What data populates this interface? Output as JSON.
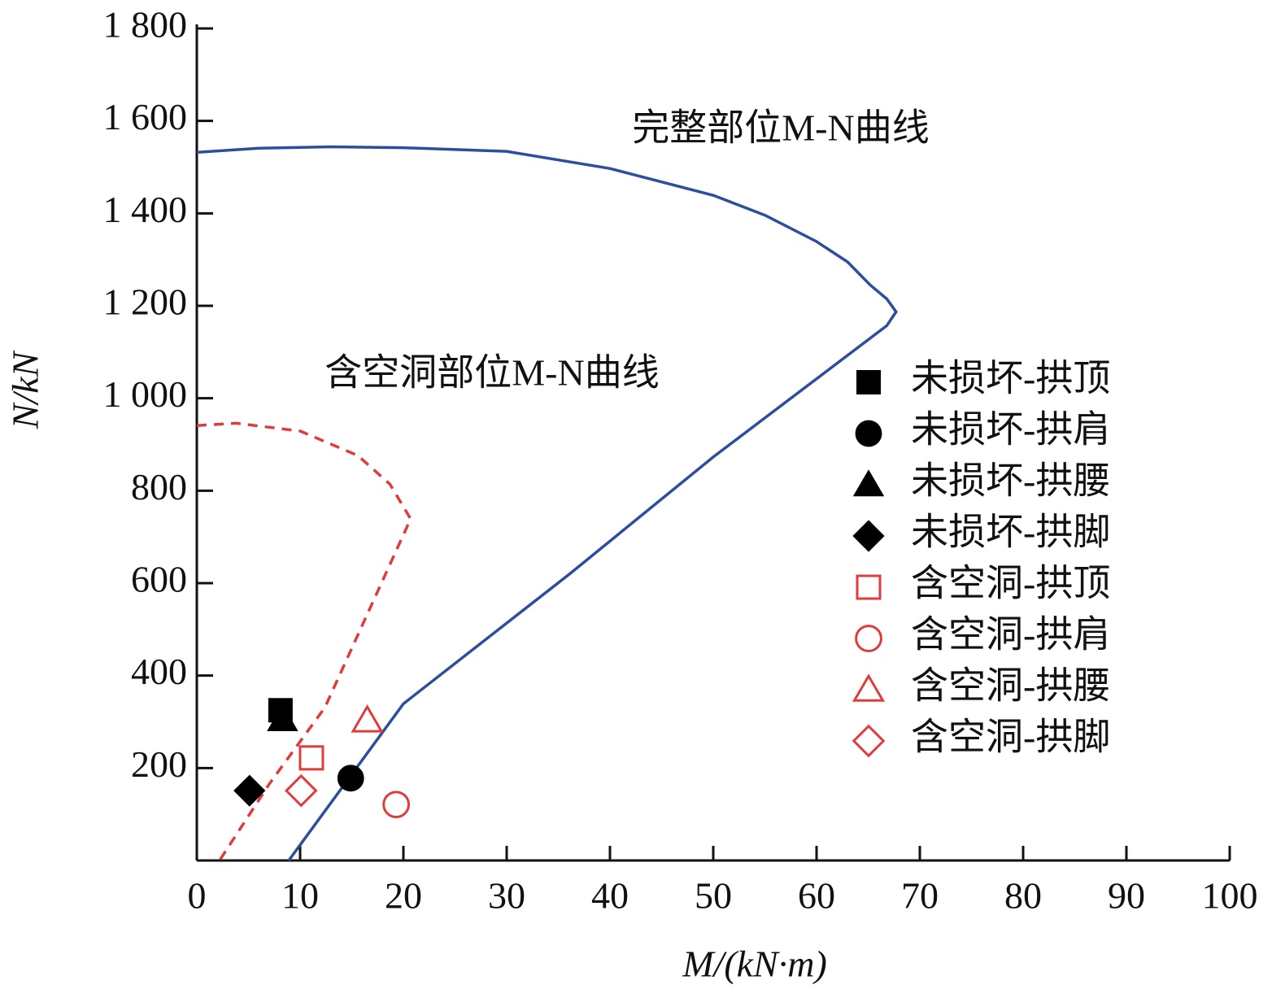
{
  "chart_data": {
    "type": "scatter",
    "xlabel": "M/(kN·m)",
    "ylabel": "N/kN",
    "xlim": [
      0,
      100
    ],
    "xticks": [
      0,
      10,
      20,
      30,
      40,
      50,
      60,
      70,
      80,
      90,
      100
    ],
    "ylim": [
      0,
      1800
    ],
    "yticks": [
      200,
      400,
      600,
      800,
      {
        "value": 1000,
        "label": "1 000"
      },
      {
        "value": 1200,
        "label": "1 200"
      },
      {
        "value": 1400,
        "label": "1 400"
      },
      {
        "value": 1600,
        "label": "1 600"
      },
      {
        "value": 1800,
        "label": "1 800"
      }
    ],
    "curves": [
      {
        "label": "完整部位M-N曲线",
        "color": "#2b4f9e",
        "dashed": false,
        "x": [
          0,
          6,
          13,
          20,
          30,
          40,
          50,
          55,
          60,
          63,
          65.2,
          66.8,
          67.7,
          66.8,
          50,
          36.1,
          20,
          8.9
        ],
        "values": [
          1532,
          1541,
          1544,
          1542,
          1534,
          1497,
          1439,
          1396,
          1339,
          1295,
          1245,
          1215,
          1187,
          1157,
          873,
          620,
          339,
          0
        ]
      },
      {
        "label": "含空洞部位M-N曲线",
        "color": "#e03c3c",
        "dashed": true,
        "x": [
          0,
          3.8,
          10,
          15.6,
          18.7,
          20.7,
          12.4,
          7,
          2.2
        ],
        "values": [
          941,
          946,
          929,
          876,
          814,
          739,
          331,
          165,
          0
        ]
      }
    ],
    "series": [
      {
        "name": "未损坏-拱顶",
        "color": "#000000",
        "marker": "square",
        "filled": true,
        "x": [
          8.1
        ],
        "values": [
          325
        ]
      },
      {
        "name": "未损坏-拱肩",
        "color": "#000000",
        "marker": "circle",
        "filled": true,
        "x": [
          14.9
        ],
        "values": [
          178
        ]
      },
      {
        "name": "未损坏-拱腰",
        "color": "#000000",
        "marker": "triangle",
        "filled": true,
        "x": [
          8.3
        ],
        "values": [
          305
        ]
      },
      {
        "name": "未损坏-拱脚",
        "color": "#000000",
        "marker": "diamond",
        "filled": true,
        "x": [
          5.1
        ],
        "values": [
          151
        ]
      },
      {
        "name": "含空洞-拱顶",
        "color": "#e03c3c",
        "marker": "square",
        "filled": false,
        "x": [
          11.1
        ],
        "values": [
          222
        ]
      },
      {
        "name": "含空洞-拱肩",
        "color": "#e03c3c",
        "marker": "circle",
        "filled": false,
        "x": [
          19.3
        ],
        "values": [
          121
        ]
      },
      {
        "name": "含空洞-拱腰",
        "color": "#e03c3c",
        "marker": "triangle",
        "filled": false,
        "x": [
          16.5
        ],
        "values": [
          303
        ]
      },
      {
        "name": "含空洞-拱脚",
        "color": "#e03c3c",
        "marker": "diamond",
        "filled": false,
        "x": [
          10.1
        ],
        "values": [
          151
        ]
      }
    ]
  }
}
